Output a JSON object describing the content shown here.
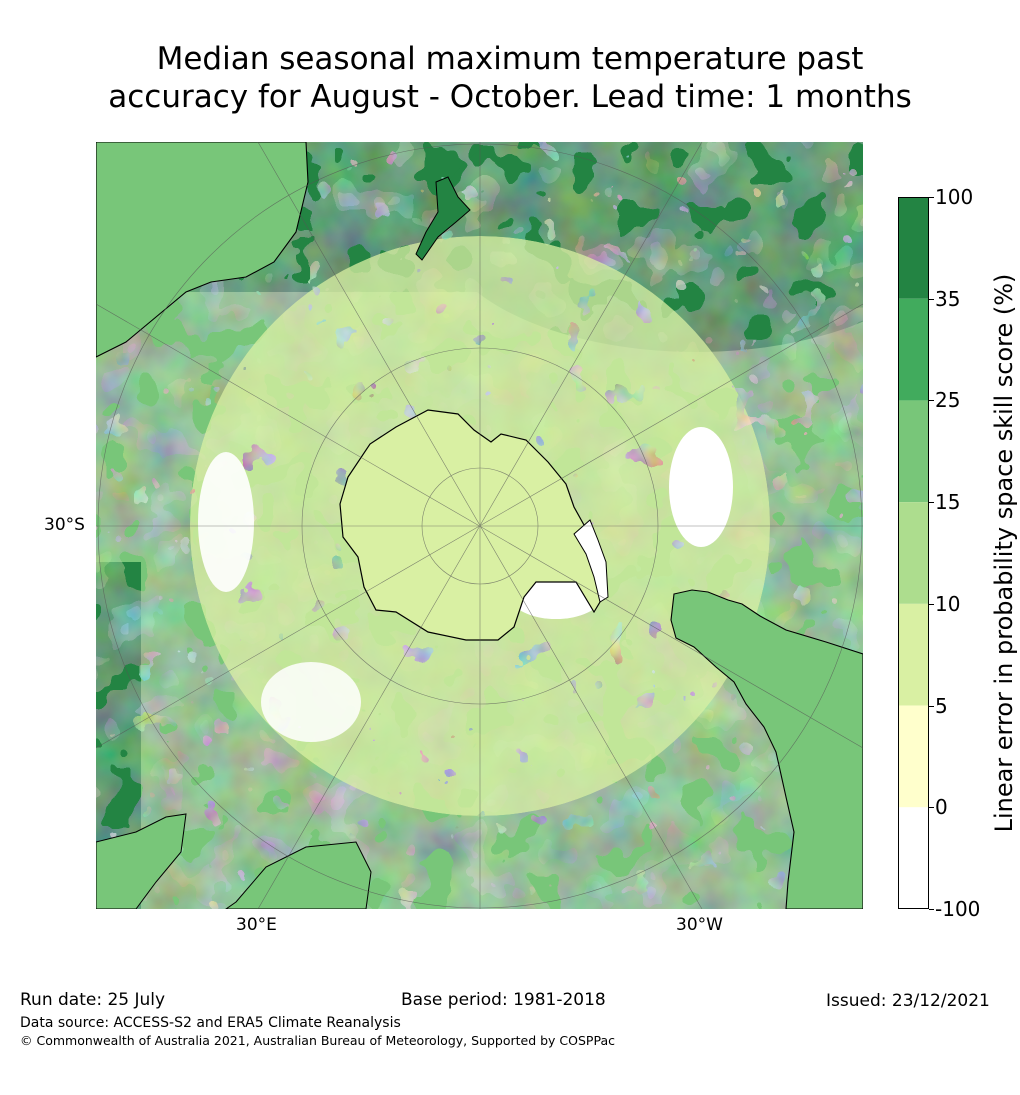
{
  "title": {
    "line1": "Median seasonal maximum temperature past",
    "line2": "accuracy for August - October. Lead time: 1 months"
  },
  "map": {
    "lat_label": "30°S",
    "lon_label_left": "30°E",
    "lon_label_right": "30°W",
    "projection": "south-polar-stereographic",
    "colors": {
      "land_outline": "#000000",
      "graticule": "#555555"
    }
  },
  "colorbar": {
    "label": "Linear error in probability space skill score (%)",
    "ticks": [
      "100",
      "35",
      "25",
      "15",
      "10",
      "5",
      "0",
      "-100"
    ],
    "levels": [
      {
        "range": "-100 to 0",
        "color": "#ffffff"
      },
      {
        "range": "0 to 5",
        "color": "#ffffcc"
      },
      {
        "range": "5 to 10",
        "color": "#d9f0a3"
      },
      {
        "range": "10 to 15",
        "color": "#addd8e"
      },
      {
        "range": "15 to 25",
        "color": "#78c679"
      },
      {
        "range": "25 to 35",
        "color": "#41ab5d"
      },
      {
        "range": "35 to 100",
        "color": "#238443"
      }
    ]
  },
  "footer": {
    "run_date": "Run date: 25 July",
    "base_period": "Base period: 1981-2018",
    "issued": "Issued: 23/12/2021",
    "data_source": "Data source: ACCESS-S2 and ERA5 Climate Reanalysis",
    "copyright": "© Commonwealth of Australia 2021, Australian Bureau of Meteorology, Supported by COSPPac"
  }
}
